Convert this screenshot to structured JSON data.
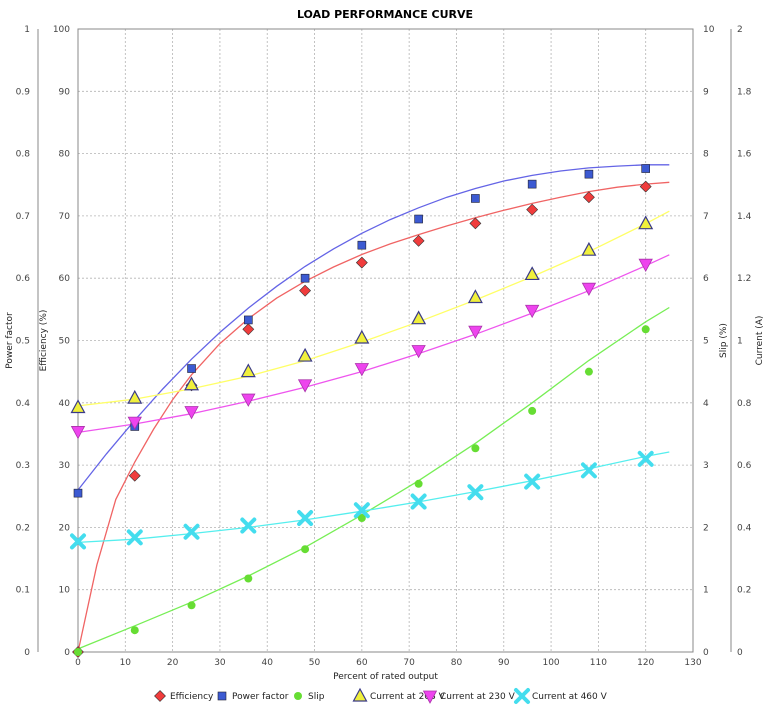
{
  "chart_data": {
    "type": "scatter",
    "title": "LOAD PERFORMANCE CURVE",
    "xlabel": "Percent of rated output",
    "xlim": [
      0,
      130
    ],
    "x_ticks": [
      0,
      10,
      20,
      30,
      40,
      50,
      60,
      70,
      80,
      90,
      100,
      110,
      120,
      130
    ],
    "grid": true,
    "legend_position": "bottom",
    "axes": {
      "power_factor": {
        "label": "Power factor",
        "side": "left-outer",
        "range": [
          0,
          1
        ],
        "ticks": [
          "0",
          "0.1",
          "0.2",
          "0.3",
          "0.4",
          "0.5",
          "0.6",
          "0.7",
          "0.8",
          "0.9",
          "1"
        ]
      },
      "efficiency": {
        "label": "Efficiency (%)",
        "side": "left-inner",
        "range": [
          0,
          100
        ],
        "ticks": [
          "0",
          "10",
          "20",
          "30",
          "40",
          "50",
          "60",
          "70",
          "80",
          "90",
          "100"
        ]
      },
      "slip": {
        "label": "Slip (%)",
        "side": "right-inner",
        "range": [
          0,
          10
        ],
        "ticks": [
          "0",
          "1",
          "2",
          "3",
          "4",
          "5",
          "6",
          "7",
          "8",
          "9",
          "10"
        ]
      },
      "current": {
        "label": "Current (A)",
        "side": "right-outer",
        "range": [
          0,
          2
        ],
        "ticks": [
          "0",
          "0.2",
          "0.4",
          "0.6",
          "0.8",
          "1",
          "1.2",
          "1.4",
          "1.6",
          "1.8",
          "2"
        ]
      }
    },
    "x": [
      0,
      12,
      24,
      36,
      48,
      60,
      72,
      84,
      96,
      108,
      120
    ],
    "series": [
      {
        "name": "Efficiency",
        "axis": "efficiency",
        "color": "#f03c3c",
        "line_color": "#f06464",
        "marker": "diamond",
        "values": [
          0,
          28.3,
          42.8,
          51.8,
          58.0,
          62.5,
          66.0,
          68.8,
          71.0,
          73.0,
          74.7
        ],
        "fit": [
          [
            0,
            0
          ],
          [
            4,
            14
          ],
          [
            8,
            24.5
          ],
          [
            12,
            30.5
          ],
          [
            16,
            35.8
          ],
          [
            20,
            40.5
          ],
          [
            24,
            44.5
          ],
          [
            30,
            49.5
          ],
          [
            36,
            53.5
          ],
          [
            42,
            56.8
          ],
          [
            48,
            59.5
          ],
          [
            54,
            61.8
          ],
          [
            60,
            63.8
          ],
          [
            66,
            65.5
          ],
          [
            72,
            67.0
          ],
          [
            78,
            68.4
          ],
          [
            84,
            69.7
          ],
          [
            90,
            70.9
          ],
          [
            96,
            72.0
          ],
          [
            102,
            73.0
          ],
          [
            108,
            73.9
          ],
          [
            114,
            74.6
          ],
          [
            120,
            75.1
          ],
          [
            125,
            75.4
          ]
        ]
      },
      {
        "name": "Power factor",
        "axis": "power_factor",
        "color": "#3c5ad2",
        "line_color": "#6464e6",
        "marker": "square",
        "values": [
          0.255,
          0.362,
          0.455,
          0.533,
          0.6,
          0.653,
          0.695,
          0.728,
          0.751,
          0.767,
          0.776
        ],
        "fit": [
          [
            0,
            0.26
          ],
          [
            6,
            0.318
          ],
          [
            12,
            0.372
          ],
          [
            18,
            0.423
          ],
          [
            24,
            0.47
          ],
          [
            30,
            0.513
          ],
          [
            36,
            0.552
          ],
          [
            42,
            0.587
          ],
          [
            48,
            0.619
          ],
          [
            54,
            0.647
          ],
          [
            60,
            0.672
          ],
          [
            66,
            0.694
          ],
          [
            72,
            0.713
          ],
          [
            78,
            0.73
          ],
          [
            84,
            0.744
          ],
          [
            90,
            0.756
          ],
          [
            96,
            0.765
          ],
          [
            102,
            0.772
          ],
          [
            108,
            0.777
          ],
          [
            114,
            0.78
          ],
          [
            120,
            0.782
          ],
          [
            125,
            0.782
          ]
        ]
      },
      {
        "name": "Slip",
        "axis": "slip",
        "color": "#66dd33",
        "line_color": "#77ee55",
        "marker": "circle",
        "values": [
          0,
          0.35,
          0.75,
          1.18,
          1.65,
          2.15,
          2.7,
          3.27,
          3.87,
          4.5,
          5.18
        ],
        "fit": [
          [
            0,
            0.05
          ],
          [
            12,
            0.42
          ],
          [
            24,
            0.8
          ],
          [
            36,
            1.22
          ],
          [
            48,
            1.68
          ],
          [
            60,
            2.2
          ],
          [
            72,
            2.75
          ],
          [
            84,
            3.35
          ],
          [
            96,
            4.0
          ],
          [
            108,
            4.68
          ],
          [
            120,
            5.3
          ],
          [
            125,
            5.53
          ]
        ]
      },
      {
        "name": "Current at 208 V",
        "axis": "current",
        "color": "#f0f03c",
        "line_color": "#ffff66",
        "marker": "triangle-up",
        "values": [
          0.785,
          0.815,
          0.858,
          0.9,
          0.95,
          1.008,
          1.07,
          1.138,
          1.212,
          1.29,
          1.375
        ],
        "fit": [
          [
            0,
            0.79
          ],
          [
            12,
            0.812
          ],
          [
            24,
            0.845
          ],
          [
            36,
            0.885
          ],
          [
            48,
            0.935
          ],
          [
            60,
            0.995
          ],
          [
            72,
            1.06
          ],
          [
            84,
            1.13
          ],
          [
            96,
            1.205
          ],
          [
            108,
            1.285
          ],
          [
            120,
            1.375
          ],
          [
            125,
            1.415
          ]
        ]
      },
      {
        "name": "Current at 230 V",
        "axis": "current",
        "color": "#ee44ee",
        "line_color": "#ee55ee",
        "marker": "triangle-down",
        "values": [
          0.708,
          0.738,
          0.772,
          0.812,
          0.858,
          0.91,
          0.968,
          1.03,
          1.097,
          1.168,
          1.245
        ],
        "fit": [
          [
            0,
            0.705
          ],
          [
            12,
            0.732
          ],
          [
            24,
            0.765
          ],
          [
            36,
            0.805
          ],
          [
            48,
            0.85
          ],
          [
            60,
            0.9
          ],
          [
            72,
            0.958
          ],
          [
            84,
            1.02
          ],
          [
            96,
            1.088
          ],
          [
            108,
            1.16
          ],
          [
            120,
            1.24
          ],
          [
            125,
            1.275
          ]
        ]
      },
      {
        "name": "Current at 460 V",
        "axis": "current",
        "color": "#44ddee",
        "line_color": "#55eeee",
        "marker": "x",
        "values": [
          0.355,
          0.368,
          0.386,
          0.406,
          0.43,
          0.455,
          0.483,
          0.513,
          0.547,
          0.583,
          0.62
        ],
        "fit": [
          [
            0,
            0.352
          ],
          [
            12,
            0.362
          ],
          [
            24,
            0.38
          ],
          [
            36,
            0.4
          ],
          [
            48,
            0.424
          ],
          [
            60,
            0.452
          ],
          [
            72,
            0.482
          ],
          [
            84,
            0.515
          ],
          [
            96,
            0.55
          ],
          [
            108,
            0.588
          ],
          [
            120,
            0.628
          ],
          [
            125,
            0.642
          ]
        ]
      }
    ]
  }
}
